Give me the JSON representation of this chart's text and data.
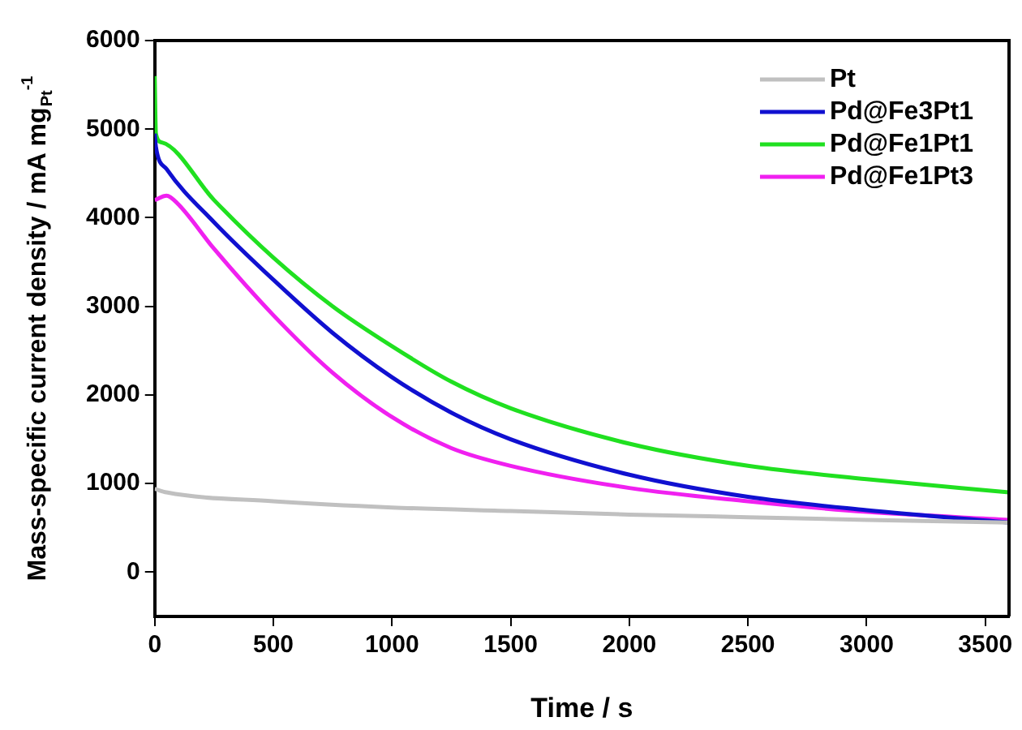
{
  "chart_data": {
    "type": "line",
    "xlabel": "Time / s",
    "ylabel": "Mass-specific current density / mA mg$_{Pt}$$^{-1}$",
    "xlim": [
      0,
      3600
    ],
    "xticks": [
      0,
      500,
      1000,
      1500,
      2000,
      2500,
      3000,
      3500
    ],
    "ylim": [
      -500,
      6000
    ],
    "yticks": [
      0,
      1000,
      2000,
      3000,
      4000,
      5000,
      6000
    ],
    "grid": false,
    "legend": "top right",
    "marker": "none",
    "line_style": "solid",
    "series": [
      {
        "name": "Pt",
        "color": "#c0c0c0",
        "x": [
          0,
          50,
          500,
          1000,
          1500,
          2000,
          2500,
          3000,
          3600
        ],
        "values": [
          940,
          900,
          800,
          730,
          690,
          650,
          620,
          590,
          560
        ]
      },
      {
        "name": "Pd@Fe3Pt1",
        "color": "#1010d0",
        "x": [
          0,
          5,
          50,
          250,
          500,
          750,
          1000,
          1250,
          1500,
          2000,
          2500,
          3000,
          3600
        ],
        "values": [
          4950,
          4800,
          4550,
          3950,
          3300,
          2700,
          2200,
          1800,
          1500,
          1100,
          850,
          700,
          560
        ]
      },
      {
        "name": "Pd@Fe1Pt1",
        "color": "#20e020",
        "x": [
          0,
          5,
          30,
          250,
          500,
          750,
          1000,
          1250,
          1500,
          2000,
          2500,
          3000,
          3600
        ],
        "values": [
          5600,
          4950,
          4850,
          4200,
          3550,
          3000,
          2550,
          2150,
          1850,
          1450,
          1200,
          1050,
          900
        ]
      },
      {
        "name": "Pd@Fe1Pt3",
        "color": "#f020f0",
        "x": [
          0,
          50,
          100,
          250,
          500,
          750,
          1000,
          1250,
          1500,
          2000,
          2500,
          3000,
          3600
        ],
        "values": [
          4200,
          4250,
          4150,
          3650,
          2900,
          2250,
          1750,
          1400,
          1200,
          950,
          800,
          680,
          590
        ]
      }
    ]
  }
}
